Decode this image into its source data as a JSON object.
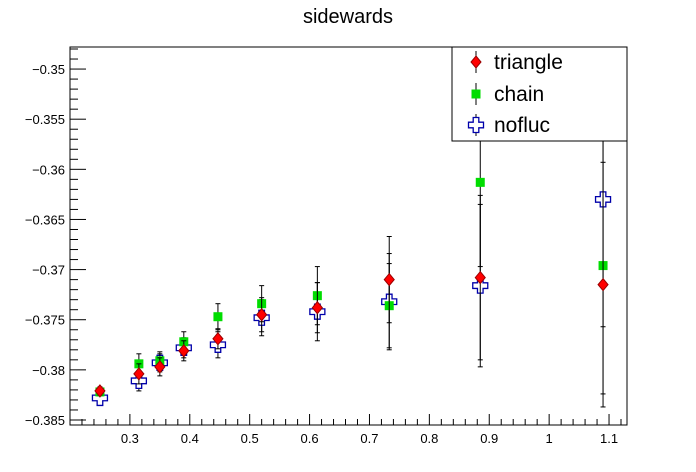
{
  "chart_data": {
    "type": "scatter",
    "title": "sidewards",
    "xlabel": "",
    "ylabel": "",
    "xlim": [
      0.2,
      1.13
    ],
    "ylim": [
      -0.3855,
      -0.3478
    ],
    "x_ticks": [
      0.3,
      0.4,
      0.5,
      0.6,
      0.7,
      0.8,
      0.9,
      1,
      1.1
    ],
    "x_tick_labels": [
      "0.3",
      "0.4",
      "0.5",
      "0.6",
      "0.7",
      "0.8",
      "0.9",
      "1",
      "1.1"
    ],
    "y_ticks": [
      -0.35,
      -0.355,
      -0.36,
      -0.365,
      -0.37,
      -0.375,
      -0.38,
      -0.385
    ],
    "y_tick_labels": [
      "−0.35",
      "−0.355",
      "−0.36",
      "−0.365",
      "−0.37",
      "−0.375",
      "−0.38",
      "−0.385"
    ],
    "grid": false,
    "legend_position": "top-right",
    "series": [
      {
        "name": "triangle",
        "marker": "diamond",
        "color": "#ff0000",
        "stroke": "#990000",
        "x": [
          0.25,
          0.315,
          0.35,
          0.39,
          0.447,
          0.52,
          0.613,
          0.733,
          0.885,
          1.09
        ],
        "y": [
          -0.3821,
          -0.3804,
          -0.3797,
          -0.3781,
          -0.3769,
          -0.3745,
          -0.3738,
          -0.371,
          -0.3708,
          -0.3715
        ],
        "yerr": [
          0.0004,
          0.001,
          0.0009,
          0.001,
          0.001,
          0.0017,
          0.0025,
          0.0043,
          0.0082,
          0.0122
        ]
      },
      {
        "name": "chain",
        "marker": "square",
        "color": "#00dd00",
        "stroke": "#00dd00",
        "x": [
          0.25,
          0.315,
          0.35,
          0.39,
          0.447,
          0.52,
          0.613,
          0.733,
          0.885,
          1.09
        ],
        "y": [
          -0.3822,
          -0.3794,
          -0.3791,
          -0.3772,
          -0.3747,
          -0.3734,
          -0.3726,
          -0.3736,
          -0.3613,
          -0.3696
        ],
        "yerr": [
          0.0004,
          0.001,
          0.0009,
          0.001,
          0.0013,
          0.0018,
          0.0029,
          0.0042,
          0.0084,
          0.0128
        ]
      },
      {
        "name": "nofluc",
        "marker": "open-cross",
        "color": "#ffffff",
        "stroke": "#0000aa",
        "x": [
          0.25,
          0.315,
          0.35,
          0.39,
          0.447,
          0.52,
          0.613,
          0.733,
          0.885,
          1.09
        ],
        "y": [
          -0.3828,
          -0.3811,
          -0.3793,
          -0.3778,
          -0.3775,
          -0.3748,
          -0.3742,
          -0.3732,
          -0.3716,
          -0.363
        ],
        "yerr": [
          0.0004,
          0.001,
          0.0009,
          0.001,
          0.0013,
          0.0018,
          0.0029,
          0.0048,
          0.0081,
          0.0127
        ]
      }
    ]
  }
}
